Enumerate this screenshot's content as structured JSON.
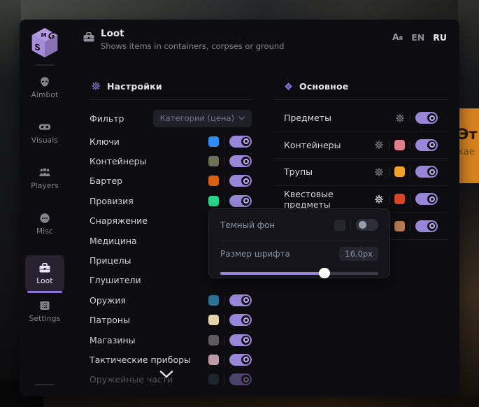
{
  "header": {
    "title": "Loot",
    "subtitle": "Shows items in containers, corpses or ground",
    "lang_icon": "Aя",
    "languages": [
      {
        "label": "EN",
        "active": false
      },
      {
        "label": "RU",
        "active": true
      }
    ]
  },
  "sidebar": {
    "items": [
      {
        "label": "Aimbot"
      },
      {
        "label": "Visuals"
      },
      {
        "label": "Players"
      },
      {
        "label": "Misc"
      },
      {
        "label": "Loot",
        "active": true
      },
      {
        "label": "Settings"
      }
    ]
  },
  "filters_panel": {
    "title": "Настройки",
    "filter_label": "Фильтр",
    "filter_value": "Категории (цена)",
    "items": [
      {
        "label": "Ключи",
        "color": "#2e8df2",
        "enabled": true
      },
      {
        "label": "Контейнеры",
        "color": "#6e7158",
        "enabled": true
      },
      {
        "label": "Бартер",
        "color": "#d9600f",
        "enabled": true
      },
      {
        "label": "Провизия",
        "color": "#2ad78e",
        "enabled": true
      },
      {
        "label": "Снаряжение",
        "color": null,
        "enabled": null
      },
      {
        "label": "Медицина",
        "color": null,
        "enabled": null
      },
      {
        "label": "Прицелы",
        "color": null,
        "enabled": null
      },
      {
        "label": "Глушители",
        "color": null,
        "enabled": null
      },
      {
        "label": "Оружия",
        "color": "#2e7295",
        "enabled": true
      },
      {
        "label": "Патроны",
        "color": "#e5d4ab",
        "enabled": true
      },
      {
        "label": "Магазины",
        "color": "#5d5b5f",
        "enabled": true
      },
      {
        "label": "Тактические приборы",
        "color": "#bb9aa5",
        "enabled": true
      },
      {
        "label": "Оружейные части",
        "color": "#274454",
        "enabled": true,
        "faded": true
      }
    ]
  },
  "main_panel": {
    "title": "Основное",
    "rows": [
      {
        "label": "Предметы",
        "color": null,
        "enabled": true,
        "gear_active": false
      },
      {
        "label": "Контейнеры",
        "color": "#df7f8e",
        "enabled": true,
        "gear_active": false
      },
      {
        "label": "Трупы",
        "color": "#f0a328",
        "enabled": true,
        "gear_active": false
      },
      {
        "label": "Квестовые предметы",
        "color": "#da4527",
        "enabled": true,
        "gear_active": true
      },
      {
        "label": "",
        "color": "#b97e52",
        "enabled": true,
        "gear_active": false
      }
    ]
  },
  "popup": {
    "dark_bg_label": "Темный фон",
    "dark_bg_swatch_color": "#26262e",
    "dark_bg_enabled": false,
    "font_size_label": "Размер шрифта",
    "font_size_value": "16.0px",
    "slider_percent": 66
  },
  "background_tooltip": {
    "line1": "Эт",
    "line2": "кае",
    "color": "#d8831f"
  }
}
